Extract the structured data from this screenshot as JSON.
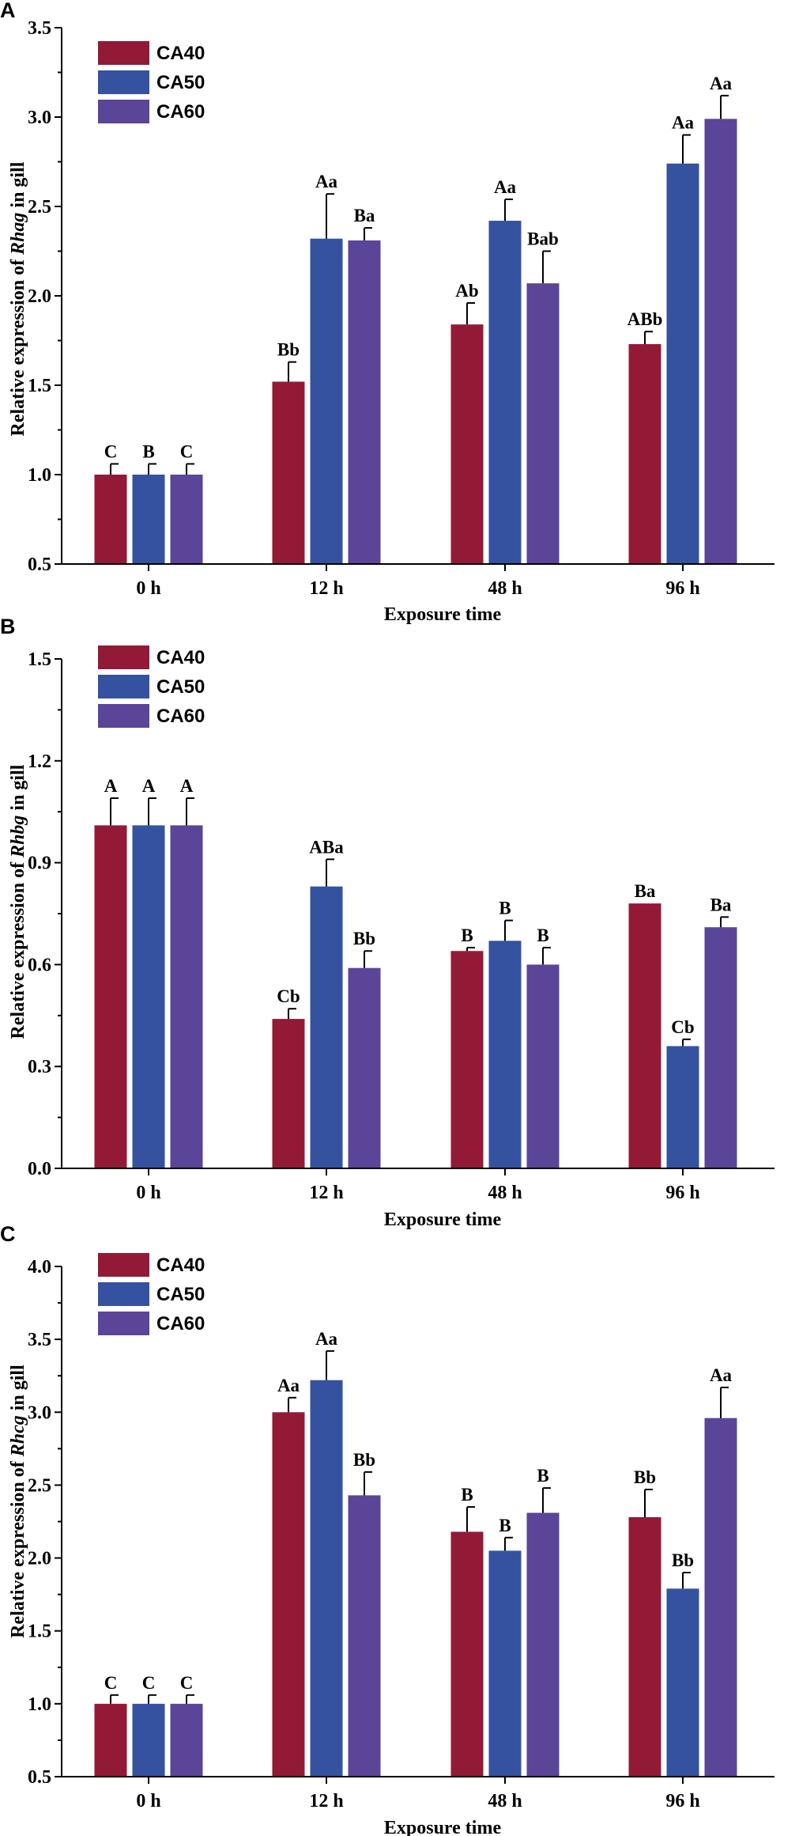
{
  "figure": {
    "legend_order": [
      "CA40",
      "CA50",
      "CA60"
    ],
    "colors": {
      "CA40": "#931a37",
      "CA50": "#3452a0",
      "CA60": "#5a4598"
    }
  },
  "chart_data": [
    {
      "type": "bar",
      "panel": "A",
      "categories": [
        "0 h",
        "12 h",
        "48 h",
        "96 h"
      ],
      "xlabel": "Exposure time",
      "ylabel_parts": [
        "Relative expression of ",
        "Rhag",
        " in gill"
      ],
      "ylim": [
        0.5,
        3.5
      ],
      "ticks": [
        0.5,
        1.0,
        1.5,
        2.0,
        2.5,
        3.0,
        3.5
      ],
      "tick_decimals": 1,
      "series": [
        {
          "name": "CA40",
          "values": [
            1.0,
            1.52,
            1.84,
            1.73
          ],
          "errors": [
            0.06,
            0.11,
            0.12,
            0.07
          ],
          "labels": [
            "C",
            "Bb",
            "Ab",
            "ABb"
          ]
        },
        {
          "name": "CA50",
          "values": [
            1.0,
            2.32,
            2.42,
            2.74
          ],
          "errors": [
            0.06,
            0.25,
            0.12,
            0.16
          ],
          "labels": [
            "B",
            "Aa",
            "Aa",
            "Aa"
          ]
        },
        {
          "name": "CA60",
          "values": [
            1.0,
            2.31,
            2.07,
            2.99
          ],
          "errors": [
            0.06,
            0.07,
            0.18,
            0.13
          ],
          "labels": [
            "C",
            "Ba",
            "Bab",
            "Aa"
          ]
        }
      ]
    },
    {
      "type": "bar",
      "panel": "B",
      "categories": [
        "0 h",
        "12 h",
        "48 h",
        "96 h"
      ],
      "xlabel": "Exposure time",
      "ylabel_parts": [
        "Relative expression of ",
        "Rhbg",
        " in gill"
      ],
      "ylim": [
        0.0,
        1.5
      ],
      "ticks": [
        0.0,
        0.3,
        0.6,
        0.9,
        1.2,
        1.5
      ],
      "tick_decimals": 1,
      "series": [
        {
          "name": "CA40",
          "values": [
            1.01,
            0.44,
            0.64,
            0.78
          ],
          "errors": [
            0.08,
            0.03,
            0.01,
            0.0
          ],
          "labels": [
            "A",
            "Cb",
            "B",
            "Ba"
          ]
        },
        {
          "name": "CA50",
          "values": [
            1.01,
            0.83,
            0.67,
            0.36
          ],
          "errors": [
            0.08,
            0.08,
            0.06,
            0.02
          ],
          "labels": [
            "A",
            "ABa",
            "B",
            "Cb"
          ]
        },
        {
          "name": "CA60",
          "values": [
            1.01,
            0.59,
            0.6,
            0.71
          ],
          "errors": [
            0.08,
            0.05,
            0.05,
            0.03
          ],
          "labels": [
            "A",
            "Bb",
            "B",
            "Ba"
          ]
        }
      ]
    },
    {
      "type": "bar",
      "panel": "C",
      "categories": [
        "0 h",
        "12 h",
        "48 h",
        "96 h"
      ],
      "xlabel": "Exposure time",
      "ylabel_parts": [
        "Relative expression of ",
        "Rhcg",
        " in gill"
      ],
      "ylim": [
        0.5,
        4.0
      ],
      "ticks": [
        0.5,
        1.0,
        1.5,
        2.0,
        2.5,
        3.0,
        3.5,
        4.0
      ],
      "tick_decimals": 1,
      "series": [
        {
          "name": "CA40",
          "values": [
            1.0,
            3.0,
            2.18,
            2.28
          ],
          "errors": [
            0.06,
            0.1,
            0.17,
            0.19
          ],
          "labels": [
            "C",
            "Aa",
            "B",
            "Bb"
          ]
        },
        {
          "name": "CA50",
          "values": [
            1.0,
            3.22,
            2.05,
            1.79
          ],
          "errors": [
            0.06,
            0.2,
            0.09,
            0.11
          ],
          "labels": [
            "C",
            "Aa",
            "B",
            "Bb"
          ]
        },
        {
          "name": "CA60",
          "values": [
            1.0,
            2.43,
            2.31,
            2.96
          ],
          "errors": [
            0.06,
            0.16,
            0.17,
            0.21
          ],
          "labels": [
            "C",
            "Bb",
            "B",
            "Aa"
          ]
        }
      ]
    }
  ]
}
